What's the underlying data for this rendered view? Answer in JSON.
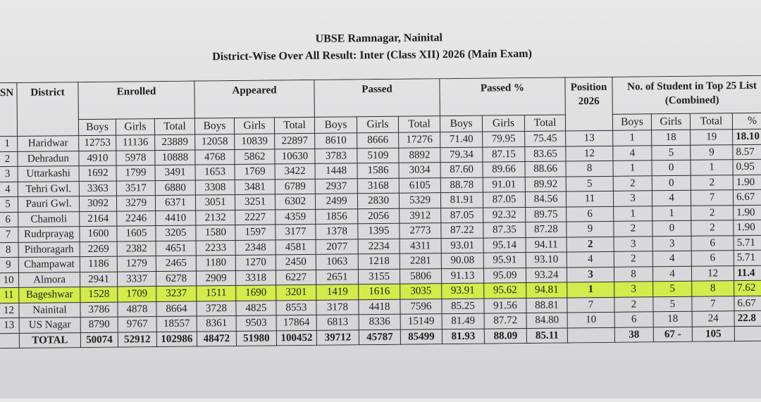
{
  "document": {
    "title": "UBSE Ramnagar, Nainital",
    "subtitle": "District-Wise Over All Result:  Inter (Class XII) 2026 (Main Exam)",
    "highlight_color": "#d4ec4a"
  },
  "headers": {
    "sn": "SN",
    "district": "District",
    "enrolled": "Enrolled",
    "appeared": "Appeared",
    "passed": "Passed",
    "passed_pct": "Passed %",
    "position": "Position 2026",
    "top25": "No. of Student in Top 25 List (Combined)",
    "boys": "Boys",
    "girls": "Girls",
    "total": "Total",
    "pct": "%"
  },
  "rows": [
    [
      "1",
      "Haridwar",
      "12753",
      "11136",
      "23889",
      "12058",
      "10839",
      "22897",
      "8610",
      "8666",
      "17276",
      "71.40",
      "79.95",
      "75.45",
      "13",
      "1",
      "18",
      "19",
      "18.10"
    ],
    [
      "2",
      "Dehradun",
      "4910",
      "5978",
      "10888",
      "4768",
      "5862",
      "10630",
      "3783",
      "5109",
      "8892",
      "79.34",
      "87.15",
      "83.65",
      "12",
      "4",
      "5",
      "9",
      "8.57"
    ],
    [
      "3",
      "Uttarkashi",
      "1692",
      "1799",
      "3491",
      "1653",
      "1769",
      "3422",
      "1448",
      "1586",
      "3034",
      "87.60",
      "89.66",
      "88.66",
      "8",
      "1",
      "0",
      "1",
      "0.95"
    ],
    [
      "4",
      "Tehri Gwl.",
      "3363",
      "3517",
      "6880",
      "3308",
      "3481",
      "6789",
      "2937",
      "3168",
      "6105",
      "88.78",
      "91.01",
      "89.92",
      "5",
      "2",
      "0",
      "2",
      "1.90"
    ],
    [
      "5",
      "Pauri Gwl.",
      "3092",
      "3279",
      "6371",
      "3051",
      "3251",
      "6302",
      "2499",
      "2830",
      "5329",
      "81.91",
      "87.05",
      "84.56",
      "11",
      "3",
      "4",
      "7",
      "6.67"
    ],
    [
      "6",
      "Chamoli",
      "2164",
      "2246",
      "4410",
      "2132",
      "2227",
      "4359",
      "1856",
      "2056",
      "3912",
      "87.05",
      "92.32",
      "89.75",
      "6",
      "1",
      "1",
      "2",
      "1.90"
    ],
    [
      "7",
      "Rudrprayag",
      "1600",
      "1605",
      "3205",
      "1580",
      "1597",
      "3177",
      "1378",
      "1395",
      "2773",
      "87.22",
      "87.35",
      "87.28",
      "9",
      "2",
      "0",
      "2",
      "1.90"
    ],
    [
      "8",
      "Pithoragarh",
      "2269",
      "2382",
      "4651",
      "2233",
      "2348",
      "4581",
      "2077",
      "2234",
      "4311",
      "93.01",
      "95.14",
      "94.11",
      "2",
      "3",
      "3",
      "6",
      "5.71"
    ],
    [
      "9",
      "Champawat",
      "1186",
      "1279",
      "2465",
      "1180",
      "1270",
      "2450",
      "1063",
      "1218",
      "2281",
      "90.08",
      "95.91",
      "93.10",
      "4",
      "2",
      "4",
      "6",
      "5.71"
    ],
    [
      "10",
      "Almora",
      "2941",
      "3337",
      "6278",
      "2909",
      "3318",
      "6227",
      "2651",
      "3155",
      "5806",
      "91.13",
      "95.09",
      "93.24",
      "3",
      "8",
      "4",
      "12",
      "11.4"
    ],
    [
      "11",
      "Bageshwar",
      "1528",
      "1709",
      "3237",
      "1511",
      "1690",
      "3201",
      "1419",
      "1616",
      "3035",
      "93.91",
      "95.62",
      "94.81",
      "1",
      "3",
      "5",
      "8",
      "7.62"
    ],
    [
      "12",
      "Nainital",
      "3786",
      "4878",
      "8664",
      "3728",
      "4825",
      "8553",
      "3178",
      "4418",
      "7596",
      "85.25",
      "91.56",
      "88.81",
      "7",
      "2",
      "5",
      "7",
      "6.67"
    ],
    [
      "13",
      "US Nagar",
      "8790",
      "9767",
      "18557",
      "8361",
      "9503",
      "17864",
      "6813",
      "8336",
      "15149",
      "81.49",
      "87.72",
      "84.80",
      "10",
      "6",
      "18",
      "24",
      "22.8"
    ]
  ],
  "highlighted_row": "Bageshwar",
  "bold_positions": [
    "2",
    "3",
    "1"
  ],
  "total_row": [
    "",
    "TOTAL",
    "50074",
    "52912",
    "102986",
    "48472",
    "51980",
    "100452",
    "39712",
    "45787",
    "85499",
    "81.93",
    "88.09",
    "85.11",
    "",
    "38",
    "67 -",
    "105",
    ""
  ]
}
